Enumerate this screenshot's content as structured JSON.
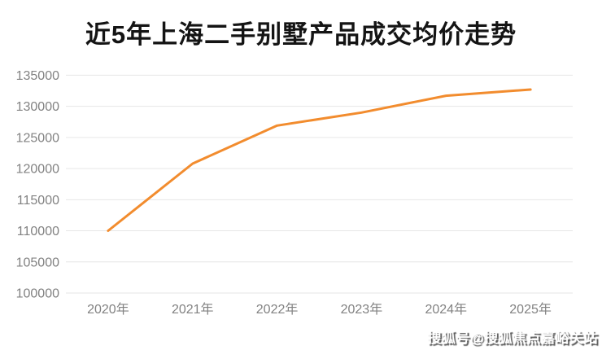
{
  "chart_data": {
    "type": "line",
    "title": "近5年上海二手别墅产品成交均价走势",
    "categories": [
      "2020年",
      "2021年",
      "2022年",
      "2023年",
      "2024年",
      "2025年"
    ],
    "series": [
      {
        "name": "成交均价",
        "values": [
          110000,
          120800,
          126900,
          129000,
          131700,
          132700
        ]
      }
    ],
    "xlabel": "",
    "ylabel": "",
    "ylim": [
      100000,
      135000
    ],
    "ytick_step": 5000,
    "ytick_labels": [
      "100000",
      "105000",
      "110000",
      "115000",
      "120000",
      "125000",
      "130000",
      "135000"
    ],
    "grid": "horizontal-only",
    "legend_position": "none",
    "colors": {
      "line": "#f28c2e",
      "grid": "#e6e6e6",
      "axis_text": "#828282",
      "title_text": "#141414"
    }
  },
  "watermark": {
    "text": "搜狐号@搜狐焦点嘉峪关站"
  }
}
